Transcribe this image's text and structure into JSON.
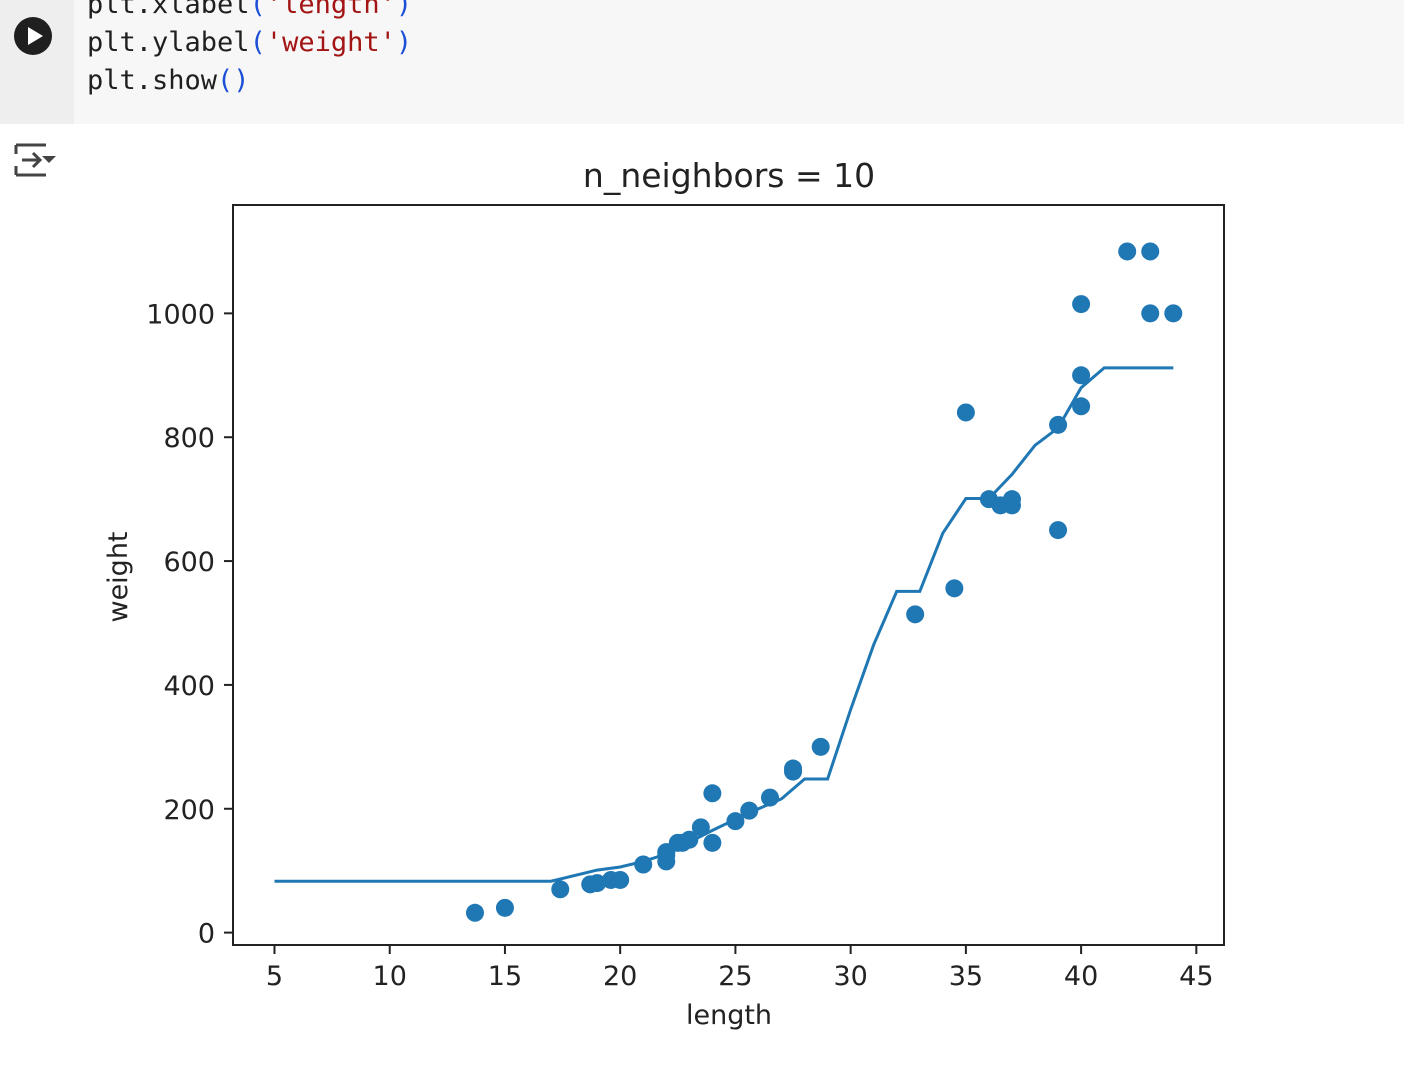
{
  "code": {
    "lines": [
      [
        {
          "t": "plt.xlabel"
        },
        {
          "t": "(",
          "c": "p"
        },
        {
          "t": "'length'",
          "c": "s"
        },
        {
          "t": ")",
          "c": "p"
        }
      ],
      [
        {
          "t": "plt.ylabel"
        },
        {
          "t": "(",
          "c": "p"
        },
        {
          "t": "'weight'",
          "c": "s"
        },
        {
          "t": ")",
          "c": "p"
        }
      ],
      [
        {
          "t": "plt.show"
        },
        {
          "t": "()",
          "c": "p"
        }
      ]
    ]
  },
  "icons": {
    "run": "play-icon",
    "output": "output-collapse-icon"
  },
  "colors": {
    "series": "#1f77b4",
    "background": "#ffffff",
    "cell": "#f7f7f7"
  },
  "chart_data": {
    "type": "scatter",
    "title": "n_neighbors = 10",
    "xlabel": "length",
    "ylabel": "weight",
    "xlim": [
      3.2,
      46.2
    ],
    "ylim": [
      -20,
      1175
    ],
    "xticks": [
      5,
      10,
      15,
      20,
      25,
      30,
      35,
      40,
      45
    ],
    "yticks": [
      0,
      200,
      400,
      600,
      800,
      1000
    ],
    "grid": false,
    "series": [
      {
        "kind": "scatter",
        "points": [
          [
            13.7,
            32
          ],
          [
            15.0,
            40
          ],
          [
            17.4,
            70
          ],
          [
            18.7,
            78
          ],
          [
            19.0,
            80
          ],
          [
            19.6,
            85
          ],
          [
            20.0,
            85
          ],
          [
            21.0,
            110
          ],
          [
            22.0,
            115
          ],
          [
            22.0,
            125
          ],
          [
            22.0,
            130
          ],
          [
            22.5,
            145
          ],
          [
            22.7,
            145
          ],
          [
            23.0,
            150
          ],
          [
            23.5,
            170
          ],
          [
            24.0,
            145
          ],
          [
            24.0,
            225
          ],
          [
            25.0,
            180
          ],
          [
            25.6,
            197
          ],
          [
            26.5,
            218
          ],
          [
            27.5,
            260
          ],
          [
            27.5,
            265
          ],
          [
            28.7,
            300
          ],
          [
            32.8,
            514
          ],
          [
            34.5,
            556
          ],
          [
            35.0,
            840
          ],
          [
            36.0,
            700
          ],
          [
            36.5,
            690
          ],
          [
            37.0,
            690
          ],
          [
            37.0,
            700
          ],
          [
            39.0,
            650
          ],
          [
            39.0,
            820
          ],
          [
            40.0,
            850
          ],
          [
            40.0,
            900
          ],
          [
            40.0,
            1015
          ],
          [
            42.0,
            1100
          ],
          [
            43.0,
            1100
          ],
          [
            43.0,
            1000
          ],
          [
            44.0,
            1000
          ]
        ]
      },
      {
        "kind": "line",
        "points": [
          [
            5,
            83
          ],
          [
            17,
            83
          ],
          [
            19,
            101
          ],
          [
            20,
            106
          ],
          [
            21,
            115
          ],
          [
            22,
            127
          ],
          [
            23,
            146
          ],
          [
            24,
            165
          ],
          [
            25,
            183
          ],
          [
            26,
            200
          ],
          [
            27,
            216
          ],
          [
            28,
            248
          ],
          [
            29,
            248
          ],
          [
            30,
            360
          ],
          [
            31,
            465
          ],
          [
            32,
            551
          ],
          [
            33,
            551
          ],
          [
            34,
            645
          ],
          [
            35,
            701
          ],
          [
            36,
            701
          ],
          [
            37,
            740
          ],
          [
            38,
            787
          ],
          [
            39,
            815
          ],
          [
            40,
            880
          ],
          [
            41,
            912
          ],
          [
            44,
            912
          ]
        ]
      }
    ]
  }
}
